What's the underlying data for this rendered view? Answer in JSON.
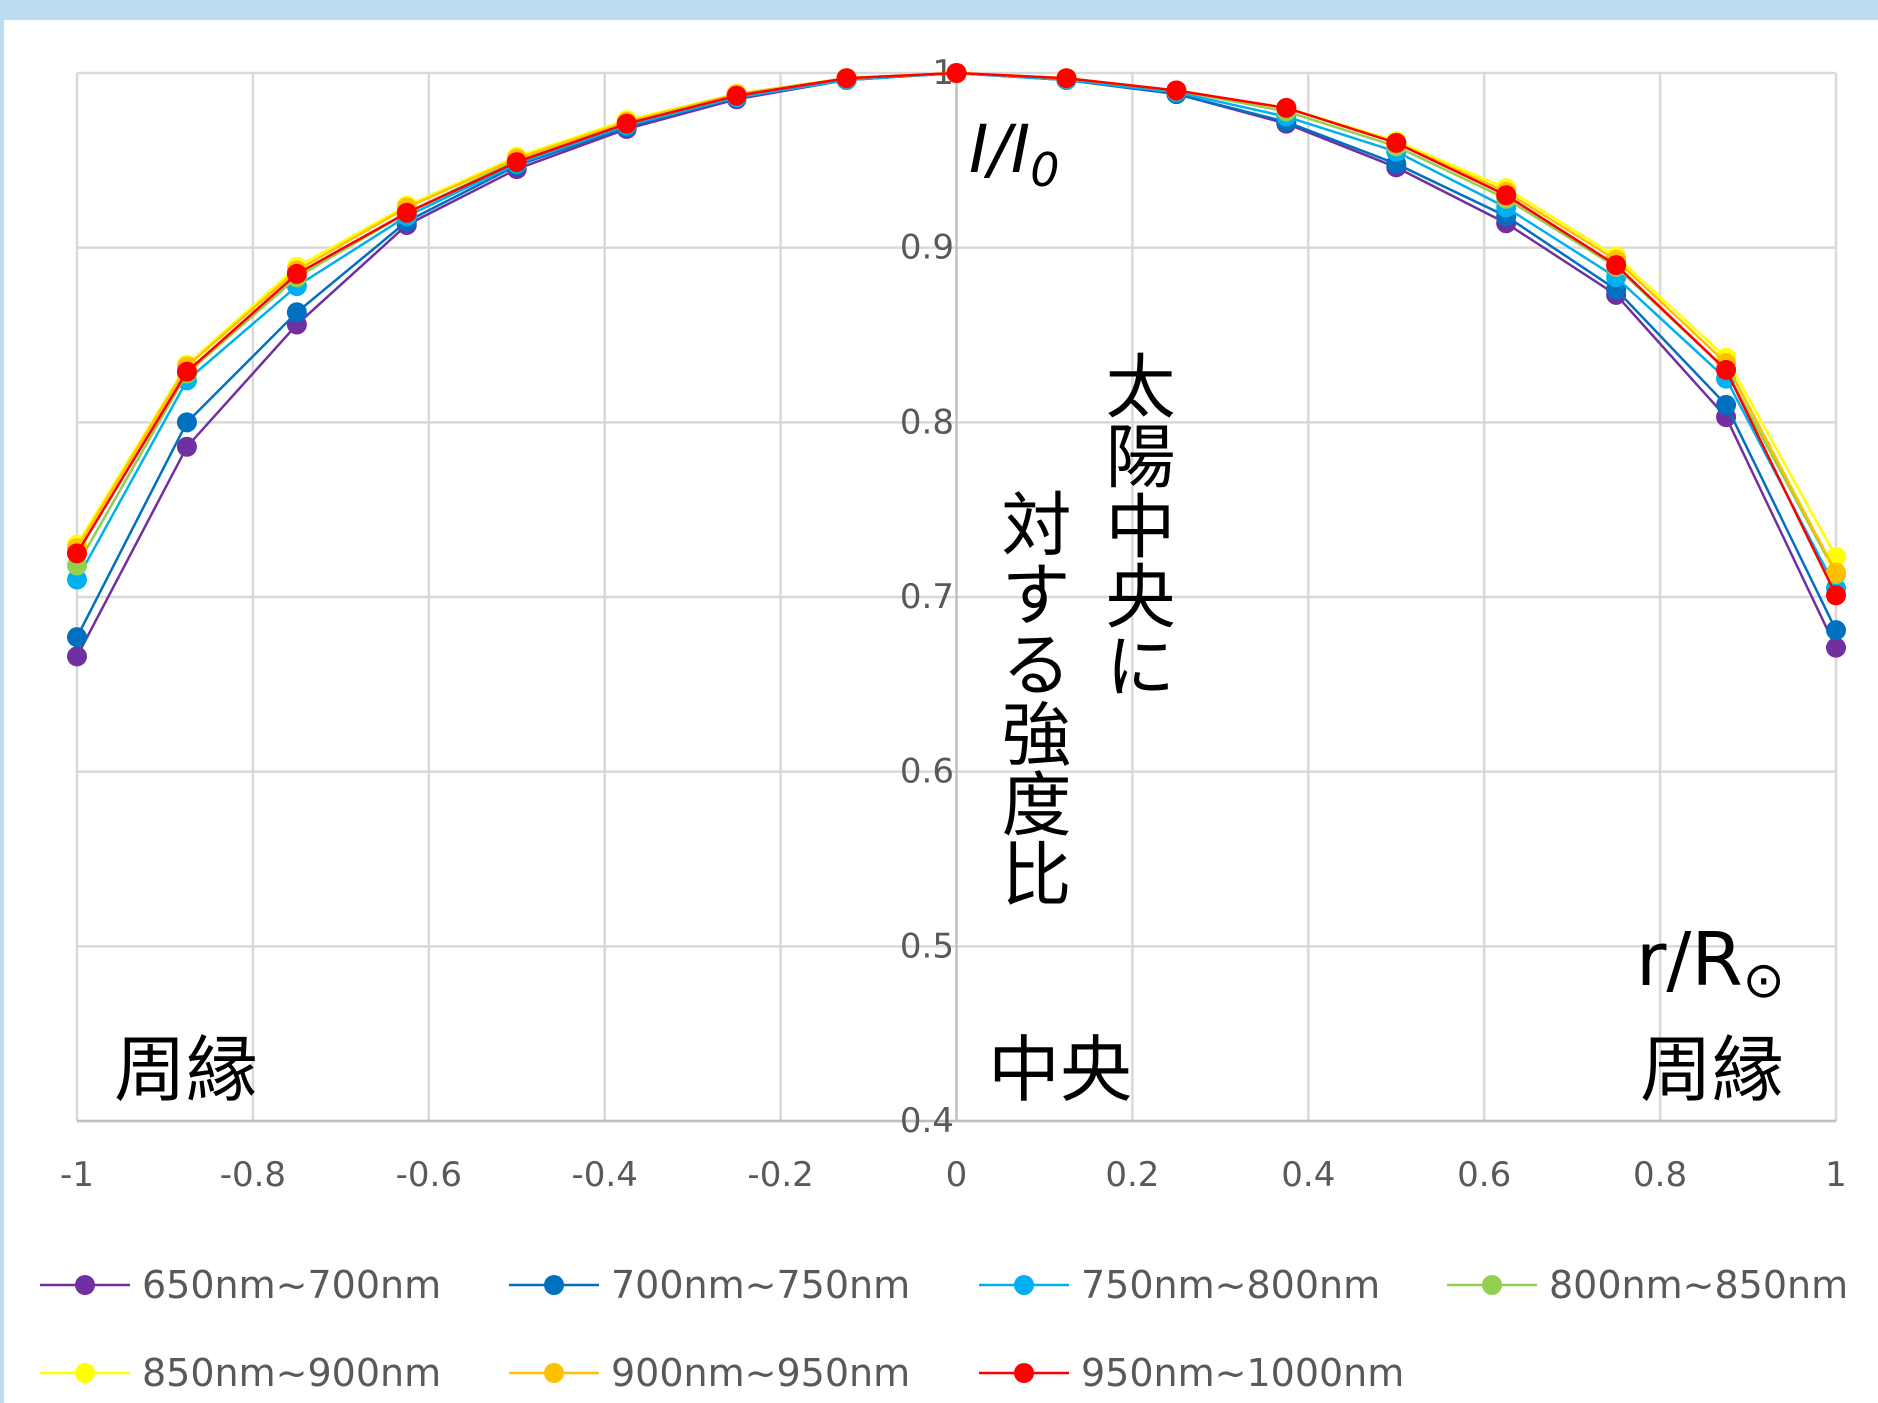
{
  "chart_data": {
    "type": "line",
    "title": "",
    "xlabel": "r/R⊙",
    "ylabel": "I/I0",
    "xlim": [
      -1,
      1
    ],
    "ylim": [
      0.4,
      1
    ],
    "x_ticks": [
      "-1",
      "-0.8",
      "-0.6",
      "-0.4",
      "-0.2",
      "0",
      "0.2",
      "0.4",
      "0.6",
      "0.8",
      "1"
    ],
    "y_ticks": [
      "0.4",
      "0.5",
      "0.6",
      "0.7",
      "0.8",
      "0.9",
      "1"
    ],
    "grid": true,
    "legend_position": "bottom",
    "annotations": {
      "ylabel_var": "I",
      "ylabel_sub": "0",
      "xlabel_base": "r/R",
      "xlabel_sym": "⊙",
      "vertical_text_1": "太陽中央に",
      "vertical_text_2": "対する強度比",
      "left_label": "周縁",
      "center_label": "中央",
      "right_label": "周縁"
    },
    "x": [
      -1,
      -0.875,
      -0.75,
      -0.625,
      -0.5,
      -0.375,
      -0.25,
      -0.125,
      0,
      0.125,
      0.25,
      0.375,
      0.5,
      0.625,
      0.75,
      0.875,
      1
    ],
    "series": [
      {
        "name": "650nm~700nm",
        "color": "#7030a0",
        "values": [
          0.666,
          0.786,
          0.856,
          0.913,
          0.945,
          0.968,
          0.985,
          0.996,
          1.0,
          0.996,
          0.988,
          0.971,
          0.946,
          0.914,
          0.873,
          0.803,
          0.671
        ]
      },
      {
        "name": "700nm~750nm",
        "color": "#0070c0",
        "values": [
          0.677,
          0.8,
          0.863,
          0.915,
          0.947,
          0.969,
          0.986,
          0.996,
          1.0,
          0.996,
          0.988,
          0.972,
          0.948,
          0.918,
          0.876,
          0.81,
          0.681
        ]
      },
      {
        "name": "750nm~800nm",
        "color": "#00b0f0",
        "values": [
          0.71,
          0.824,
          0.878,
          0.918,
          0.948,
          0.97,
          0.986,
          0.996,
          1.0,
          0.996,
          0.989,
          0.975,
          0.955,
          0.923,
          0.883,
          0.825,
          0.705
        ]
      },
      {
        "name": "800nm~850nm",
        "color": "#92d050",
        "values": [
          0.718,
          0.828,
          0.883,
          0.92,
          0.95,
          0.971,
          0.987,
          0.997,
          1.0,
          0.997,
          0.99,
          0.978,
          0.958,
          0.928,
          0.889,
          0.83,
          0.713
        ]
      },
      {
        "name": "850nm~900nm",
        "color": "#ffff00",
        "values": [
          0.73,
          0.833,
          0.889,
          0.924,
          0.952,
          0.973,
          0.988,
          0.997,
          1.0,
          0.997,
          0.99,
          0.98,
          0.961,
          0.934,
          0.895,
          0.837,
          0.723
        ]
      },
      {
        "name": "900nm~950nm",
        "color": "#ffc000",
        "values": [
          0.728,
          0.832,
          0.887,
          0.923,
          0.951,
          0.972,
          0.988,
          0.997,
          1.0,
          0.997,
          0.99,
          0.98,
          0.96,
          0.932,
          0.893,
          0.834,
          0.714
        ]
      },
      {
        "name": "950nm~1000nm",
        "color": "#ff0000",
        "values": [
          0.725,
          0.829,
          0.885,
          0.92,
          0.949,
          0.971,
          0.987,
          0.997,
          1.0,
          0.997,
          0.99,
          0.98,
          0.96,
          0.93,
          0.89,
          0.83,
          0.701
        ]
      }
    ]
  }
}
